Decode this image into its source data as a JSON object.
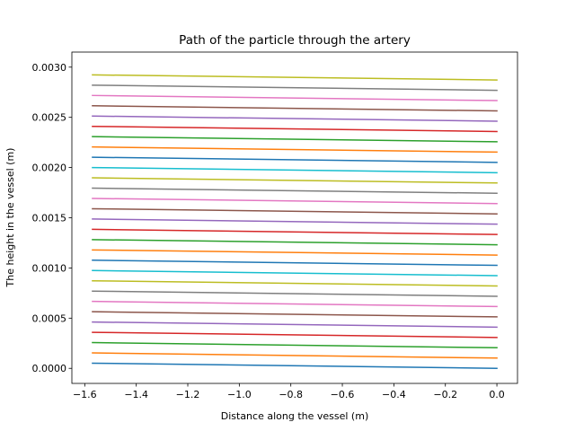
{
  "chart_data": {
    "type": "line",
    "title": "Path of the particle through the artery",
    "xlabel": "Distance along the vessel (m)",
    "ylabel": "The height in the vessel (m)",
    "xlim": [
      -1.65,
      0.08
    ],
    "ylim": [
      -0.00015,
      0.00315
    ],
    "xticks": [
      -1.6,
      -1.4,
      -1.2,
      -1.0,
      -0.8,
      -0.6,
      -0.4,
      -0.2,
      0.0
    ],
    "xtick_labels": [
      "−1.6",
      "−1.4",
      "−1.2",
      "−1.0",
      "−0.8",
      "−0.6",
      "−0.4",
      "−0.2",
      "0.0"
    ],
    "yticks": [
      0.0,
      0.0005,
      0.001,
      0.0015,
      0.002,
      0.0025,
      0.003
    ],
    "ytick_labels": [
      "0.0000",
      "0.0005",
      "0.0010",
      "0.0015",
      "0.0020",
      "0.0025",
      "0.0030"
    ],
    "grid": false,
    "legend": "none",
    "colors": [
      "#1f77b4",
      "#ff7f0e",
      "#2ca02c",
      "#d62728",
      "#9467bd",
      "#8c564b",
      "#e377c2",
      "#7f7f7f",
      "#bcbd22",
      "#17becf"
    ],
    "series": [
      {
        "x": [
          -1.57,
          0.0
        ],
        "y": [
          5.13e-05,
          0.0
        ]
      },
      {
        "x": [
          -1.57,
          0.0
        ],
        "y": [
          0.0001538,
          0.0001025
        ]
      },
      {
        "x": [
          -1.57,
          0.0
        ],
        "y": [
          0.0002564,
          0.0002051
        ]
      },
      {
        "x": [
          -1.57,
          0.0
        ],
        "y": [
          0.000359,
          0.0003077
        ]
      },
      {
        "x": [
          -1.57,
          0.0
        ],
        "y": [
          0.0004615,
          0.0004103
        ]
      },
      {
        "x": [
          -1.57,
          0.0
        ],
        "y": [
          0.0005641,
          0.0005128
        ]
      },
      {
        "x": [
          -1.57,
          0.0
        ],
        "y": [
          0.0006667,
          0.0006154
        ]
      },
      {
        "x": [
          -1.57,
          0.0
        ],
        "y": [
          0.0007692,
          0.0007179
        ]
      },
      {
        "x": [
          -1.57,
          0.0
        ],
        "y": [
          0.0008718,
          0.0008205
        ]
      },
      {
        "x": [
          -1.57,
          0.0
        ],
        "y": [
          0.0009744,
          0.0009231
        ]
      },
      {
        "x": [
          -1.57,
          0.0
        ],
        "y": [
          0.0010769,
          0.0010256
        ]
      },
      {
        "x": [
          -1.57,
          0.0
        ],
        "y": [
          0.0011795,
          0.0011282
        ]
      },
      {
        "x": [
          -1.57,
          0.0
        ],
        "y": [
          0.0012821,
          0.0012308
        ]
      },
      {
        "x": [
          -1.57,
          0.0
        ],
        "y": [
          0.0013846,
          0.0013333
        ]
      },
      {
        "x": [
          -1.57,
          0.0
        ],
        "y": [
          0.0014872,
          0.0014359
        ]
      },
      {
        "x": [
          -1.57,
          0.0
        ],
        "y": [
          0.0015897,
          0.0015385
        ]
      },
      {
        "x": [
          -1.57,
          0.0
        ],
        "y": [
          0.0016923,
          0.001641
        ]
      },
      {
        "x": [
          -1.57,
          0.0
        ],
        "y": [
          0.0017949,
          0.0017436
        ]
      },
      {
        "x": [
          -1.57,
          0.0
        ],
        "y": [
          0.0018974,
          0.0018462
        ]
      },
      {
        "x": [
          -1.57,
          0.0
        ],
        "y": [
          0.002,
          0.0019487
        ]
      },
      {
        "x": [
          -1.57,
          0.0
        ],
        "y": [
          0.0021026,
          0.0020513
        ]
      },
      {
        "x": [
          -1.57,
          0.0
        ],
        "y": [
          0.0022051,
          0.0021538
        ]
      },
      {
        "x": [
          -1.57,
          0.0
        ],
        "y": [
          0.0023077,
          0.0022564
        ]
      },
      {
        "x": [
          -1.57,
          0.0
        ],
        "y": [
          0.0024103,
          0.002359
        ]
      },
      {
        "x": [
          -1.57,
          0.0
        ],
        "y": [
          0.0025128,
          0.0024615
        ]
      },
      {
        "x": [
          -1.57,
          0.0
        ],
        "y": [
          0.0026154,
          0.0025641
        ]
      },
      {
        "x": [
          -1.57,
          0.0
        ],
        "y": [
          0.0027179,
          0.0026667
        ]
      },
      {
        "x": [
          -1.57,
          0.0
        ],
        "y": [
          0.0028205,
          0.0027692
        ]
      },
      {
        "x": [
          -1.57,
          0.0
        ],
        "y": [
          0.0029231,
          0.0028718
        ]
      }
    ]
  }
}
